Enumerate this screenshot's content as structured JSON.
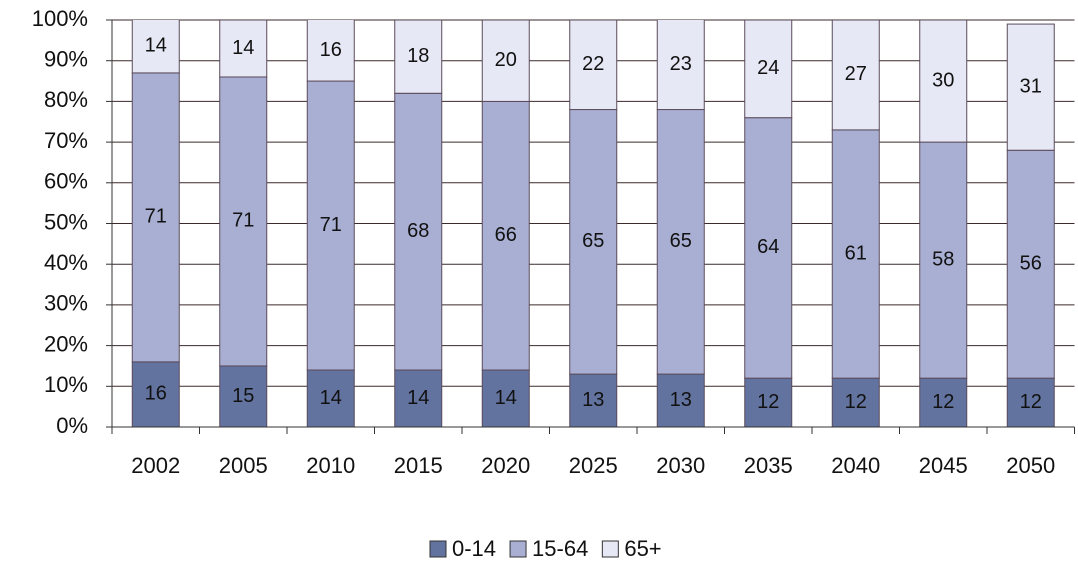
{
  "chart_data": {
    "type": "stacked_bar",
    "categories": [
      "2002",
      "2005",
      "2010",
      "2015",
      "2020",
      "2025",
      "2030",
      "2035",
      "2040",
      "2045",
      "2050"
    ],
    "series": [
      {
        "name": "0-14",
        "color": "#63739f",
        "values": [
          16,
          15,
          14,
          14,
          14,
          13,
          13,
          12,
          12,
          12,
          12
        ]
      },
      {
        "name": "15-64",
        "color": "#a9afd3",
        "values": [
          71,
          71,
          71,
          68,
          66,
          65,
          65,
          64,
          61,
          58,
          56
        ]
      },
      {
        "name": "65+",
        "color": "#e7e8f5",
        "values": [
          14,
          14,
          16,
          18,
          20,
          22,
          23,
          24,
          27,
          30,
          31
        ]
      }
    ],
    "ylim": [
      0,
      100
    ],
    "yticks": [
      {
        "value": 0,
        "label": "0%"
      },
      {
        "value": 10,
        "label": "10%"
      },
      {
        "value": 20,
        "label": "20%"
      },
      {
        "value": 30,
        "label": "30%"
      },
      {
        "value": 40,
        "label": "40%"
      },
      {
        "value": 50,
        "label": "50%"
      },
      {
        "value": 60,
        "label": "60%"
      },
      {
        "value": 70,
        "label": "70%"
      },
      {
        "value": 80,
        "label": "80%"
      },
      {
        "value": 90,
        "label": "90%"
      },
      {
        "value": 100,
        "label": "100%"
      }
    ],
    "grid": true,
    "legend": "bottom"
  }
}
